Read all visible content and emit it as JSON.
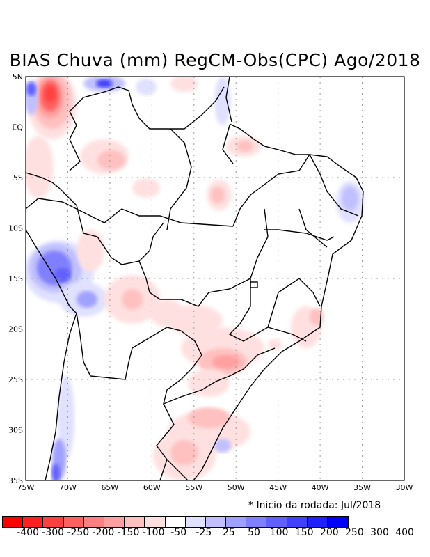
{
  "title": "BIAS Chuva (mm) RegCM-Obs(CPC) Ago/2018",
  "lat_labels": [
    "5N",
    "EQ",
    "5S",
    "10S",
    "15S",
    "20S",
    "25S",
    "30S",
    "35S"
  ],
  "lon_labels": [
    "75W",
    "70W",
    "65W",
    "60W",
    "55W",
    "50W",
    "45W",
    "40W",
    "35W",
    "30W"
  ],
  "note": "* Inicio da rodada: Jul/2018",
  "colorbar": {
    "colors": [
      "#ff0000",
      "#ff2020",
      "#ff4040",
      "#ff6060",
      "#ff8080",
      "#ffa0a0",
      "#ffc0c0",
      "#ffe0e0",
      "#ffffff",
      "#e0e0ff",
      "#c0c0ff",
      "#a0a0ff",
      "#8080ff",
      "#6060ff",
      "#4040ff",
      "#2020ff",
      "#0000ff"
    ],
    "labels": [
      "-400",
      "-300",
      "-250",
      "-200",
      "-150",
      "-100",
      "-50",
      "-25",
      "25",
      "50",
      "100",
      "150",
      "200",
      "250",
      "300",
      "400"
    ]
  }
}
